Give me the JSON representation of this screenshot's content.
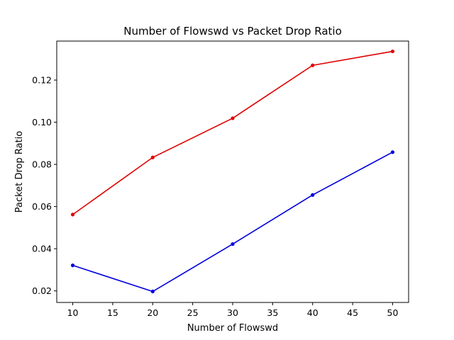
{
  "chart_data": {
    "type": "line",
    "title": "Number of Flowswd vs Packet Drop Ratio",
    "xlabel": "Number of Flowswd",
    "ylabel": "Packet Drop Ratio",
    "x": [
      10,
      20,
      30,
      40,
      50
    ],
    "xlim": [
      8,
      52
    ],
    "ylim": [
      0.0145,
      0.1385
    ],
    "xticks": [
      10,
      15,
      20,
      25,
      30,
      35,
      40,
      45,
      50
    ],
    "yticks": [
      0.02,
      0.04,
      0.06,
      0.08,
      0.1,
      0.12
    ],
    "xtick_labels": [
      "10",
      "15",
      "20",
      "25",
      "30",
      "35",
      "40",
      "45",
      "50"
    ],
    "ytick_labels": [
      "0.02",
      "0.04",
      "0.06",
      "0.08",
      "0.10",
      "0.12"
    ],
    "grid": false,
    "series": [
      {
        "color": "#e00000",
        "values": [
          0.0562,
          0.0833,
          0.1019,
          0.127,
          0.1336
        ]
      },
      {
        "color": "#0000dd",
        "values": [
          0.0321,
          0.0197,
          0.0422,
          0.0655,
          0.0858
        ]
      }
    ]
  }
}
